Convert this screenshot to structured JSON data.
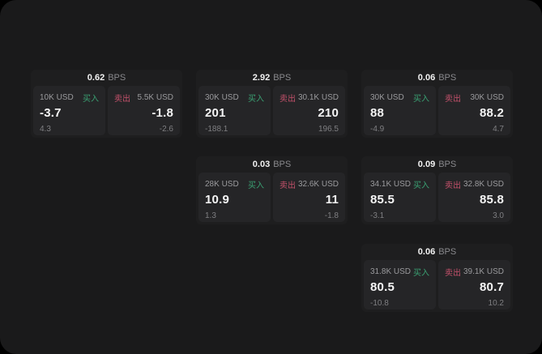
{
  "cards": [
    {
      "spread": "0.62",
      "unit": "BPS",
      "buy": {
        "amount": "10K USD",
        "side_label": "买入",
        "price": "-3.7",
        "delta": "4.3"
      },
      "sell": {
        "amount": "5.5K USD",
        "side_label": "卖出",
        "price": "-1.8",
        "delta": "-2.6"
      }
    },
    {
      "spread": "2.92",
      "unit": "BPS",
      "buy": {
        "amount": "30K USD",
        "side_label": "买入",
        "price": "201",
        "delta": "-188.1"
      },
      "sell": {
        "amount": "30.1K USD",
        "side_label": "卖出",
        "price": "210",
        "delta": "196.5"
      }
    },
    {
      "spread": "0.06",
      "unit": "BPS",
      "buy": {
        "amount": "30K USD",
        "side_label": "买入",
        "price": "88",
        "delta": "-4.9"
      },
      "sell": {
        "amount": "30K USD",
        "side_label": "卖出",
        "price": "88.2",
        "delta": "4.7"
      }
    },
    {
      "spread": "0.03",
      "unit": "BPS",
      "buy": {
        "amount": "28K USD",
        "side_label": "买入",
        "price": "10.9",
        "delta": "1.3"
      },
      "sell": {
        "amount": "32.6K USD",
        "side_label": "卖出",
        "price": "11",
        "delta": "-1.8"
      }
    },
    {
      "spread": "0.09",
      "unit": "BPS",
      "buy": {
        "amount": "34.1K USD",
        "side_label": "买入",
        "price": "85.5",
        "delta": "-3.1"
      },
      "sell": {
        "amount": "32.8K USD",
        "side_label": "卖出",
        "price": "85.8",
        "delta": "3.0"
      }
    },
    {
      "spread": "0.06",
      "unit": "BPS",
      "buy": {
        "amount": "31.8K USD",
        "side_label": "买入",
        "price": "80.5",
        "delta": "-10.8"
      },
      "sell": {
        "amount": "39.1K USD",
        "side_label": "卖出",
        "price": "80.7",
        "delta": "10.2"
      }
    }
  ],
  "colors": {
    "buy_green": "#3aa173",
    "sell_red": "#c4516b",
    "page_bg": "#1a1a1b",
    "card_bg": "#1e1e1f",
    "panel_bg": "#252527"
  }
}
